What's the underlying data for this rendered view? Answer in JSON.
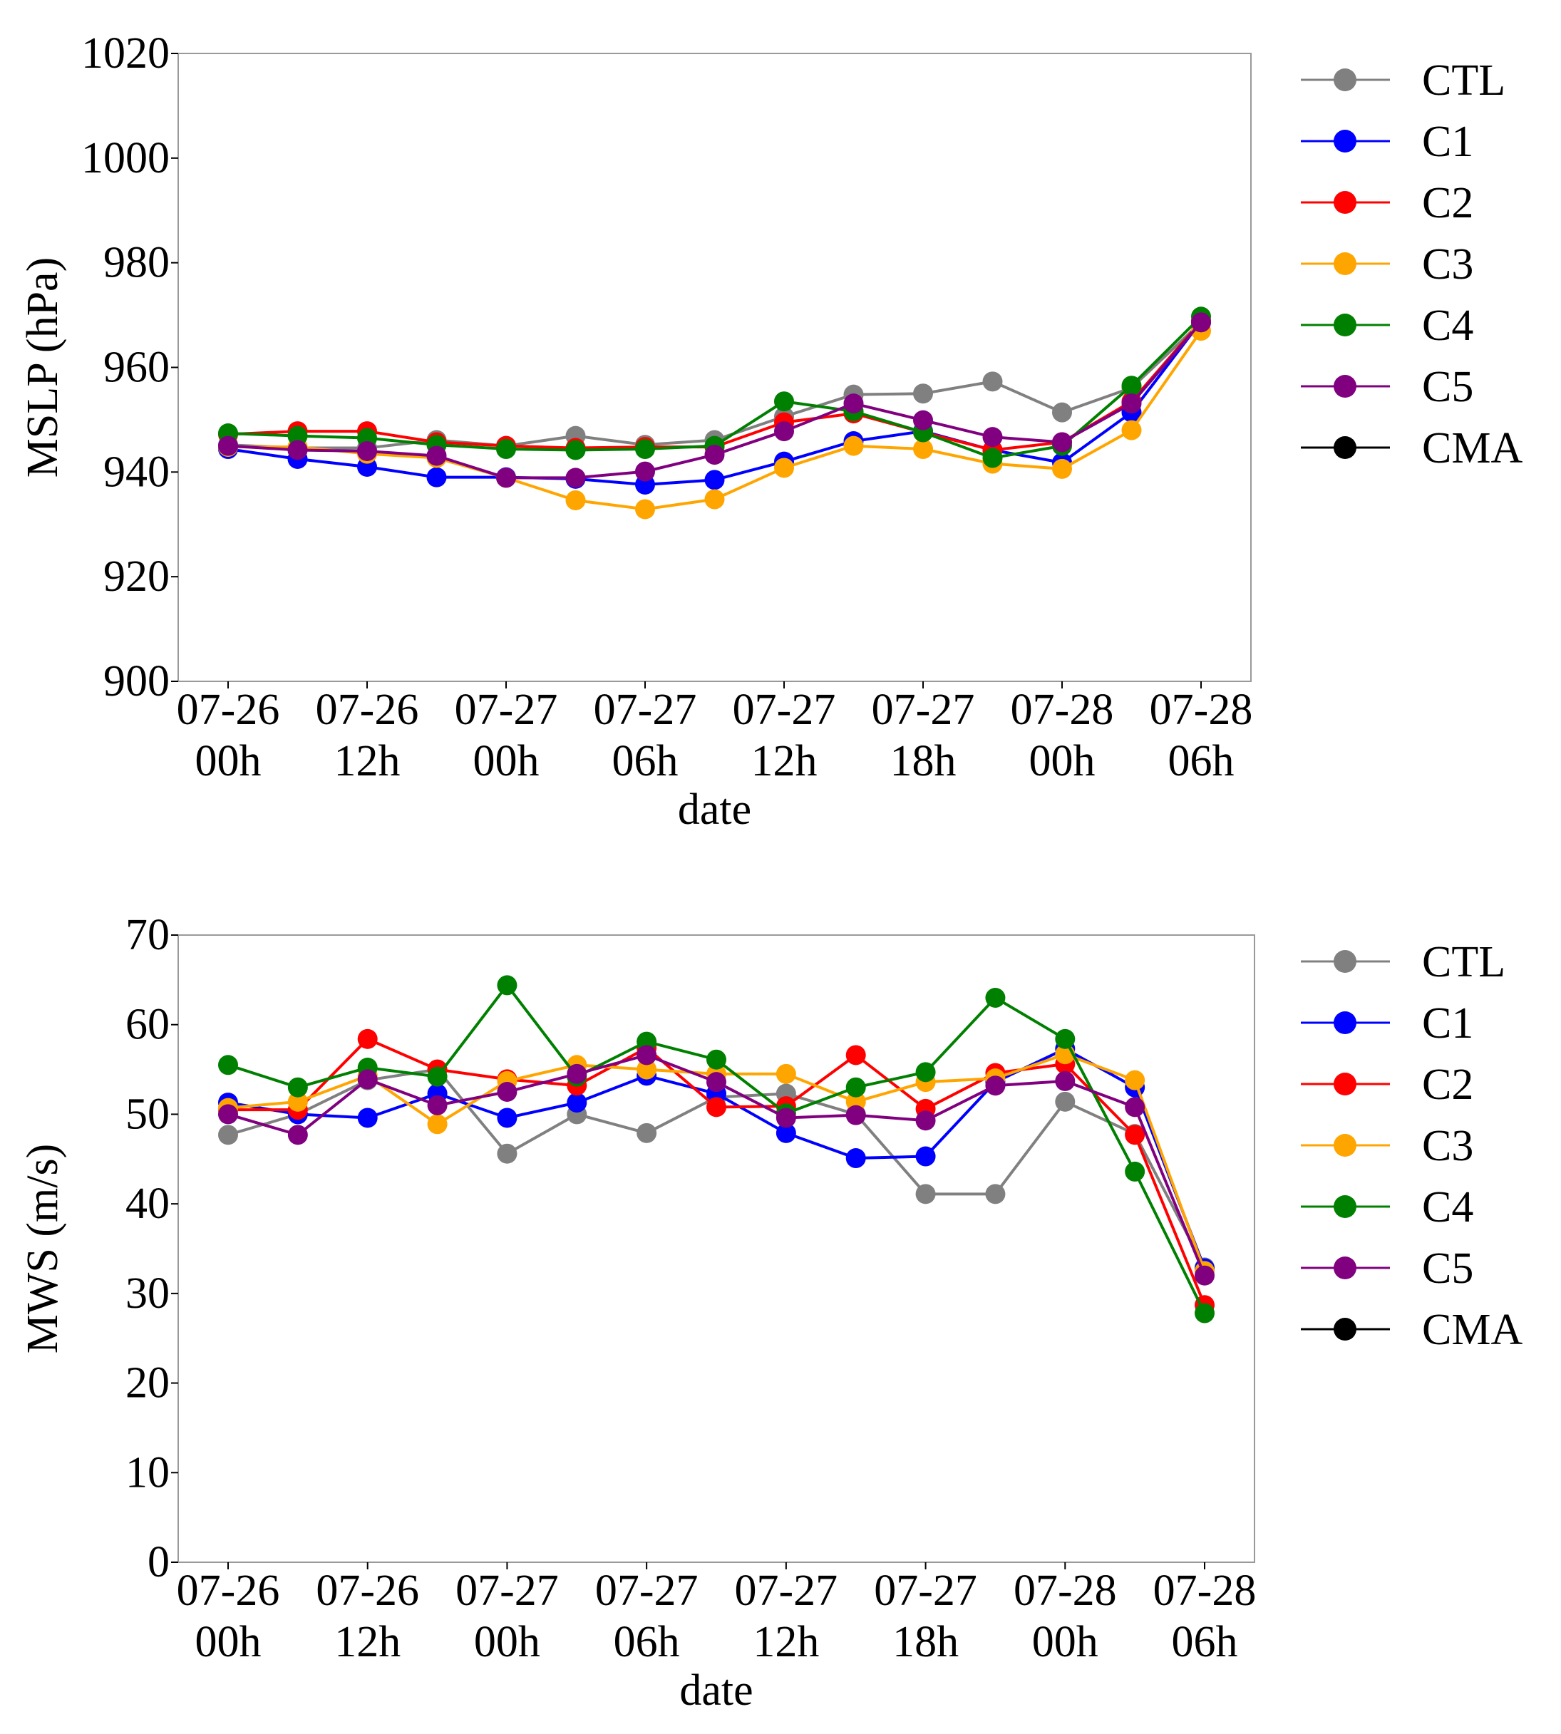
{
  "chart_data": [
    {
      "type": "line",
      "xlabel": "date",
      "ylabel": "MSLP (hPa)",
      "categories": [
        "07-26 00h",
        null,
        "07-26 12h",
        null,
        "07-27 00h",
        null,
        "07-27 06h",
        null,
        "07-27 12h",
        null,
        "07-27 18h",
        null,
        "07-28 00h",
        null,
        "07-28 06h"
      ],
      "ylim": [
        900,
        1020
      ],
      "yticks": [
        900,
        920,
        940,
        960,
        980,
        1000,
        1020
      ],
      "series": [
        {
          "name": "CTL",
          "color": "#808080",
          "values": [
            945.2,
            944.6,
            944.6,
            946.1,
            945,
            946.9,
            945.2,
            946.1,
            950.6,
            954.8,
            955,
            957.3,
            951.4,
            956.1,
            968.6
          ]
        },
        {
          "name": "C1",
          "color": "#0000ff",
          "values": [
            944.4,
            942.5,
            941,
            939,
            939,
            938.7,
            937.6,
            938.5,
            942,
            945.9,
            947.8,
            944.2,
            941.8,
            951.4,
            968.8
          ]
        },
        {
          "name": "C2",
          "color": "#ff0000",
          "values": [
            947.2,
            947.8,
            947.8,
            945.7,
            945,
            944.6,
            944.8,
            944.8,
            949.5,
            951.2,
            947.6,
            944.2,
            945.7,
            953.5,
            968.8
          ]
        },
        {
          "name": "C3",
          "color": "#ffa500",
          "values": [
            944.8,
            944.8,
            943.5,
            942.7,
            938.9,
            934.6,
            932.9,
            934.8,
            940.8,
            945,
            944.4,
            941.6,
            940.6,
            948,
            967
          ]
        },
        {
          "name": "C4",
          "color": "#008000",
          "values": [
            947.4,
            946.9,
            946.5,
            945.2,
            944.4,
            944.2,
            944.4,
            945,
            953.5,
            951.6,
            947.6,
            942.7,
            945,
            956.5,
            969.7
          ]
        },
        {
          "name": "C5",
          "color": "#800080",
          "values": [
            945,
            944.2,
            944,
            943.1,
            938.9,
            938.9,
            940.1,
            943.3,
            947.8,
            953.1,
            949.9,
            946.7,
            945.7,
            953.1,
            968.6
          ]
        },
        {
          "name": "CMA",
          "color": "#000000",
          "values": [
            null,
            null,
            null,
            null,
            null,
            null,
            null,
            null,
            null,
            null,
            null,
            null,
            null,
            null,
            null
          ]
        }
      ]
    },
    {
      "type": "line",
      "xlabel": "date",
      "ylabel": "MWS (m/s)",
      "categories": [
        "07-26 00h",
        null,
        "07-26 12h",
        null,
        "07-27 00h",
        null,
        "07-27 06h",
        null,
        "07-27 12h",
        null,
        "07-27 18h",
        null,
        "07-28 00h",
        null,
        "07-28 06h"
      ],
      "ylim": [
        0,
        70
      ],
      "yticks": [
        0,
        10,
        20,
        30,
        40,
        50,
        60,
        70
      ],
      "series": [
        {
          "name": "CTL",
          "color": "#808080",
          "values": [
            47.7,
            50,
            53.8,
            55,
            45.6,
            50,
            47.9,
            51.9,
            52.3,
            50,
            41.1,
            41.1,
            51.4,
            47.8,
            32.9
          ]
        },
        {
          "name": "C1",
          "color": "#0000ff",
          "values": [
            51.3,
            50,
            49.6,
            52.3,
            49.6,
            51.3,
            54.3,
            52.3,
            47.9,
            45.1,
            45.3,
            53.6,
            57.3,
            53,
            32.8
          ]
        },
        {
          "name": "C2",
          "color": "#ff0000",
          "values": [
            50.5,
            50.5,
            58.4,
            55,
            53.9,
            53.2,
            57.4,
            50.8,
            50.9,
            56.6,
            50.6,
            54.6,
            55.6,
            47.7,
            28.7
          ]
        },
        {
          "name": "C3",
          "color": "#ffa500",
          "values": [
            50.7,
            51.4,
            54.3,
            48.9,
            53.7,
            55.5,
            55,
            54.5,
            54.5,
            51.4,
            53.6,
            54,
            56.7,
            53.8,
            32.5
          ]
        },
        {
          "name": "C4",
          "color": "#008000",
          "values": [
            55.5,
            53,
            55.2,
            54.2,
            64.4,
            54.2,
            58.1,
            56.1,
            50.1,
            53,
            54.7,
            63,
            58.4,
            43.6,
            27.8
          ]
        },
        {
          "name": "C5",
          "color": "#800080",
          "values": [
            50,
            47.7,
            53.9,
            51,
            52.5,
            54.5,
            56.6,
            53.6,
            49.6,
            49.9,
            49.3,
            53.2,
            53.7,
            50.8,
            32
          ]
        },
        {
          "name": "CMA",
          "color": "#000000",
          "values": [
            null,
            null,
            null,
            null,
            null,
            null,
            null,
            null,
            null,
            null,
            null,
            null,
            null,
            null,
            null
          ]
        }
      ]
    }
  ]
}
